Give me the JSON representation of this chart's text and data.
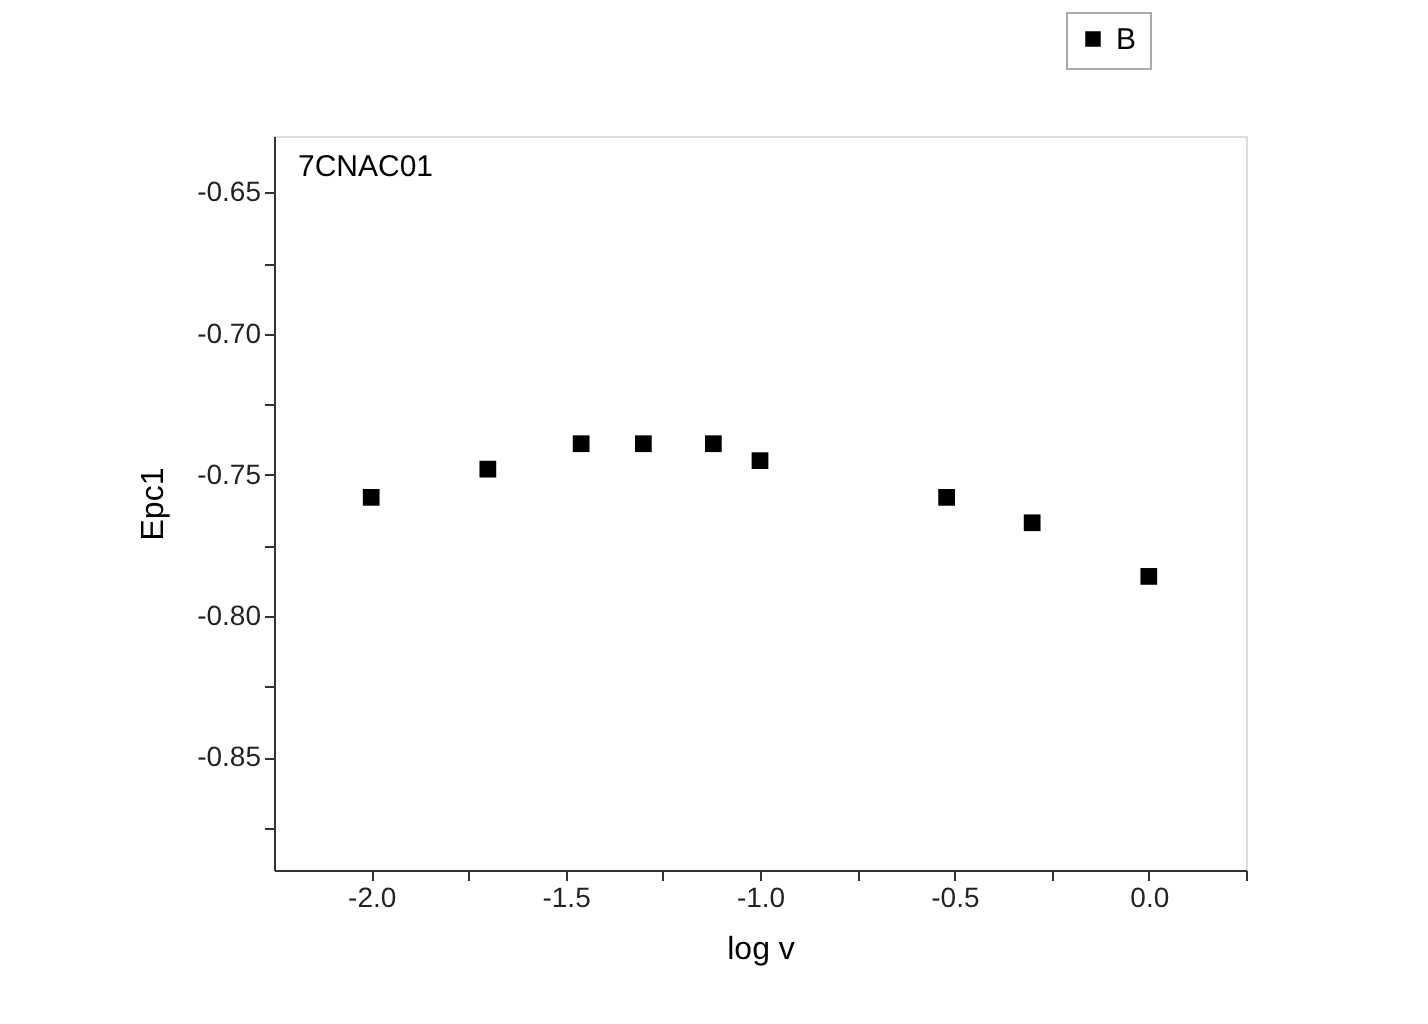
{
  "chart_data": {
    "type": "scatter",
    "xlabel": "log v",
    "ylabel": "Epc1",
    "annotations": [
      "7CNAC01"
    ],
    "x": [
      -2,
      -1.7,
      -1.46,
      -1.3,
      -1.12,
      -1,
      -0.52,
      -0.3,
      0
    ],
    "series": [
      {
        "name": "B",
        "color": "#000000",
        "values": [
          -0.758,
          -0.748,
          -0.739,
          -0.739,
          -0.739,
          -0.745,
          -0.758,
          -0.767,
          -0.786
        ]
      }
    ],
    "marker": "square",
    "legend": "top right",
    "grid": false,
    "xlim": [
      -2.25,
      0.25
    ],
    "xticks": [
      {
        "value": -2,
        "label": "-2.0"
      },
      {
        "value": -1.75,
        "label": null
      },
      {
        "value": -1.5,
        "label": "-1.5"
      },
      {
        "value": -1.25,
        "label": null
      },
      {
        "value": -1,
        "label": "-1.0"
      },
      {
        "value": -0.75,
        "label": null
      },
      {
        "value": -0.5,
        "label": "-0.5"
      },
      {
        "value": -0.25,
        "label": null
      },
      {
        "value": 0,
        "label": "0.0"
      },
      {
        "value": 0.25,
        "label": null
      }
    ],
    "ylim": [
      -0.89,
      -0.63
    ],
    "yticks": [
      {
        "value": -0.875,
        "label": null
      },
      {
        "value": -0.85,
        "label": "-0.85"
      },
      {
        "value": -0.825,
        "label": null
      },
      {
        "value": -0.8,
        "label": "-0.80"
      },
      {
        "value": -0.775,
        "label": null
      },
      {
        "value": -0.75,
        "label": "-0.75"
      },
      {
        "value": -0.725,
        "label": null
      },
      {
        "value": -0.7,
        "label": "-0.70"
      },
      {
        "value": -0.675,
        "label": null
      },
      {
        "value": -0.65,
        "label": "-0.65"
      }
    ]
  }
}
